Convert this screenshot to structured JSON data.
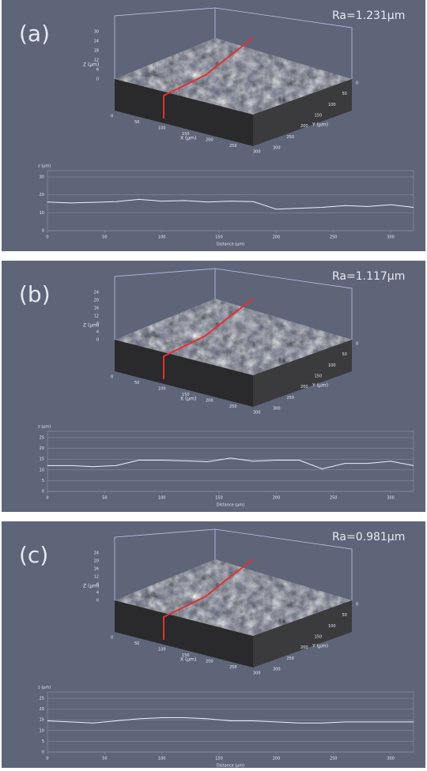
{
  "chart_data": [
    {
      "type": "line",
      "panel_label": "(a)",
      "annotation": "Ra=1.231μm",
      "surface": {
        "x_label": "X (μm)",
        "y_label": "Y (μm)",
        "z_label": "Z (μm)",
        "x_ticks": [
          0,
          50,
          100,
          150,
          200,
          250,
          300
        ],
        "y_ticks": [
          0,
          50,
          100,
          150,
          200,
          250,
          300
        ],
        "z_ticks": [
          0,
          6,
          12,
          18,
          24,
          30
        ]
      },
      "x_label": "Distance (μm)",
      "y_label": "z (μm)",
      "x": [
        0,
        20,
        40,
        60,
        80,
        100,
        120,
        140,
        160,
        180,
        200,
        220,
        240,
        260,
        280,
        300,
        320
      ],
      "series": [
        {
          "color": "#eef1f8",
          "values": [
            16,
            15.5,
            15.8,
            16.2,
            17.5,
            16.5,
            16.8,
            16,
            16.5,
            16.2,
            12,
            12.5,
            13,
            14,
            13.5,
            14.5,
            13
          ]
        }
      ],
      "xlim": [
        0,
        320
      ],
      "ylim": [
        0,
        30
      ],
      "xticks": [
        0,
        50,
        100,
        150,
        200,
        250,
        300
      ],
      "yticks": [
        0,
        10,
        20,
        30
      ],
      "grid": true
    },
    {
      "type": "line",
      "panel_label": "(b)",
      "annotation": "Ra=1.117μm",
      "surface": {
        "x_label": "X (μm)",
        "y_label": "Y (μm)",
        "z_label": "Z (μm)",
        "x_ticks": [
          0,
          50,
          100,
          150,
          200,
          250,
          300
        ],
        "y_ticks": [
          0,
          50,
          100,
          150,
          200,
          250,
          300
        ],
        "z_ticks": [
          0,
          4,
          8,
          12,
          16,
          20,
          24
        ]
      },
      "x_label": "Distance (μm)",
      "y_label": "z (μm)",
      "x": [
        0,
        20,
        40,
        60,
        80,
        100,
        120,
        140,
        160,
        180,
        200,
        220,
        240,
        260,
        280,
        300,
        320
      ],
      "series": [
        {
          "color": "#eef1f8",
          "values": [
            12,
            12,
            11.5,
            12,
            14.5,
            14.5,
            14.2,
            13.8,
            15.5,
            14,
            14.5,
            14.5,
            10.5,
            13,
            13,
            14,
            12
          ]
        }
      ],
      "xlim": [
        0,
        320
      ],
      "ylim": [
        0,
        25
      ],
      "xticks": [
        0,
        50,
        100,
        150,
        200,
        250,
        300
      ],
      "yticks": [
        0,
        5,
        10,
        15,
        20,
        25
      ],
      "grid": true
    },
    {
      "type": "line",
      "panel_label": "(c)",
      "annotation": "Ra=0.981μm",
      "surface": {
        "x_label": "X (μm)",
        "y_label": "Y (μm)",
        "z_label": "Z (μm)",
        "x_ticks": [
          0,
          50,
          100,
          150,
          200,
          250,
          300
        ],
        "y_ticks": [
          0,
          50,
          100,
          150,
          200,
          250,
          300
        ],
        "z_ticks": [
          0,
          4,
          8,
          12,
          16,
          20,
          24
        ]
      },
      "x_label": "Distance (μm)",
      "y_label": "z (μm)",
      "x": [
        0,
        20,
        40,
        60,
        80,
        100,
        120,
        140,
        160,
        180,
        200,
        220,
        240,
        260,
        280,
        300,
        320
      ],
      "series": [
        {
          "color": "#eef1f8",
          "values": [
            14.5,
            14,
            13.5,
            14.5,
            15.5,
            16,
            16,
            15.5,
            14.5,
            14.5,
            14,
            13.5,
            13.5,
            14,
            14,
            14,
            14
          ]
        }
      ],
      "xlim": [
        0,
        320
      ],
      "ylim": [
        0,
        25
      ],
      "xticks": [
        0,
        50,
        100,
        150,
        200,
        250,
        300
      ],
      "yticks": [
        0,
        5,
        10,
        15,
        20,
        25
      ],
      "grid": true
    }
  ]
}
